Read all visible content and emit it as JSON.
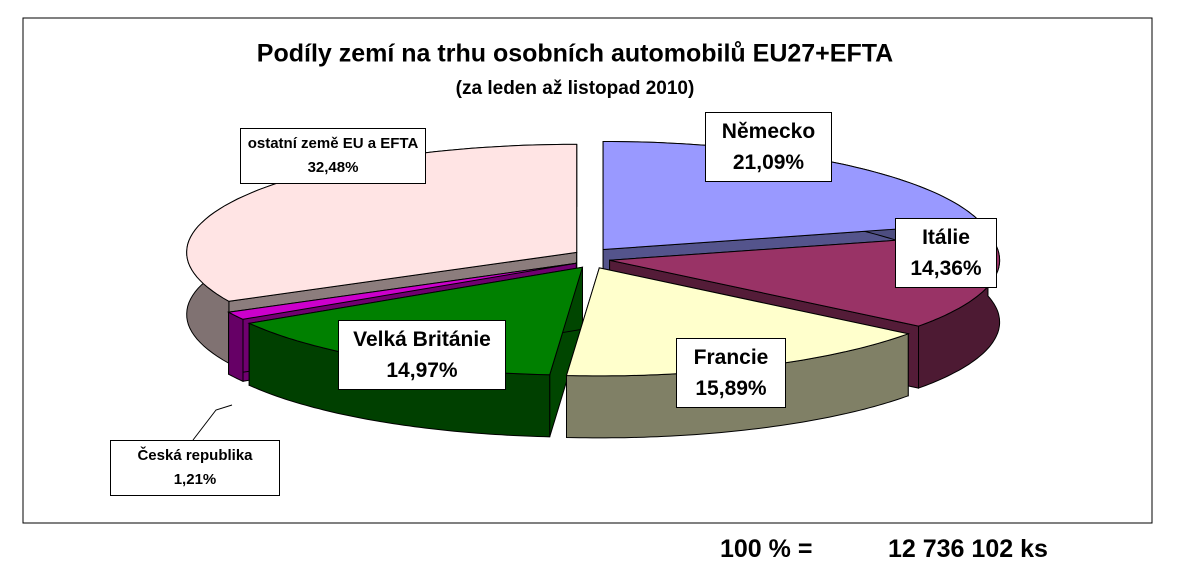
{
  "chart_data": {
    "type": "pie",
    "title": "Podíly zemí na trhu osobních automobilů EU27+EFTA",
    "subtitle": "(za leden až listopad 2010)",
    "categories": [
      "Německo",
      "Itálie",
      "Francie",
      "Velká Británie",
      "Česká republika",
      "ostatní země EU a EFTA"
    ],
    "values": [
      21.09,
      14.36,
      15.89,
      14.97,
      1.21,
      32.48
    ],
    "value_labels": [
      "21,09%",
      "14,36%",
      "15,89%",
      "14,97%",
      "1,21%",
      "32,48%"
    ],
    "colors": [
      "#9999ff",
      "#993366",
      "#ffffcc",
      "#008000",
      "#cc00cc",
      "#ffe4e4"
    ],
    "total_label": "100 % =",
    "total": "12 736 102 ks"
  }
}
